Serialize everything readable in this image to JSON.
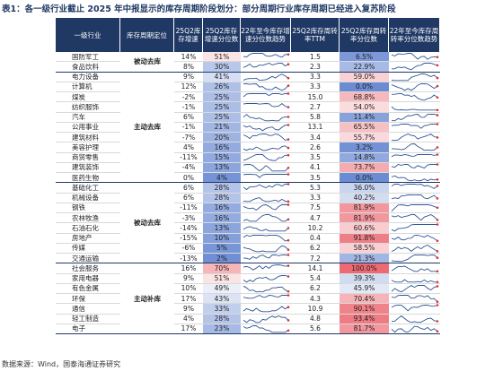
{
  "title": "表1：各一级行业截止 2025 年中报显示的库存周期阶段划分：部分周期行业库存周期已经进入复苏阶段",
  "header": [
    "一级行业",
    "库存周期定位",
    "25Q2库存增速",
    "25Q2库存增速分位数",
    "22年至今库存增速分位数趋势",
    "25Q2库存周转率TTM",
    "25Q2库存周转率分位数",
    "22年至今库存周转率分位数趋势"
  ],
  "groups": [
    {
      "label": "被动去库",
      "rows": [
        [
          "国防军工",
          "14%",
          "51%",
          "1.5",
          "6.5%"
        ],
        [
          "食品饮料",
          "8%",
          "30%",
          "2.3",
          "22.9%"
        ]
      ]
    },
    {
      "label": "主动去库",
      "rows": [
        [
          "电力设备",
          "9%",
          "41%",
          "3.3",
          "59.0%"
        ],
        [
          "计算机",
          "12%",
          "26%",
          "3.3",
          "0.0%"
        ],
        [
          "煤炭",
          "-2%",
          "25%",
          "15.0",
          "68.8%"
        ],
        [
          "纺织服饰",
          "-1%",
          "25%",
          "2.7",
          "54.0%"
        ],
        [
          "汽车",
          "6%",
          "25%",
          "5.8",
          "11.4%"
        ],
        [
          "公用事业",
          "-1%",
          "21%",
          "13.1",
          "65.5%"
        ],
        [
          "建筑材料",
          "-7%",
          "20%",
          "3.4",
          "55.7%"
        ],
        [
          "美容护理",
          "4%",
          "16%",
          "2.6",
          "3.2%"
        ],
        [
          "商贸零售",
          "-11%",
          "15%",
          "3.5",
          "14.8%"
        ],
        [
          "建筑装饰",
          "-4%",
          "13%",
          "4.1",
          "73.7%"
        ],
        [
          "医药生物",
          "0%",
          "4%",
          "3.5",
          "0.0%"
        ]
      ]
    },
    {
      "label": "被动去库",
      "rows": [
        [
          "基础化工",
          "6%",
          "28%",
          "5.3",
          "36.0%"
        ],
        [
          "机械设备",
          "6%",
          "28%",
          "3.3",
          "40.2%"
        ],
        [
          "钢铁",
          "-11%",
          "16%",
          "7.5",
          "81.9%"
        ],
        [
          "农林牧渔",
          "-3%",
          "16%",
          "4.7",
          "81.9%"
        ],
        [
          "石油石化",
          "-14%",
          "13%",
          "10.2",
          "60.6%"
        ],
        [
          "房地产",
          "-15%",
          "10%",
          "0.4",
          "91.8%"
        ],
        [
          "传媒",
          "-6%",
          "5%",
          "6.2",
          "58.5%"
        ],
        [
          "交通运输",
          "-13%",
          "2%",
          "7.2",
          "21.3%"
        ]
      ]
    },
    {
      "label": "主动补库",
      "rows": [
        [
          "社会服务",
          "16%",
          "70%",
          "14.1",
          "100.0%"
        ],
        [
          "家用电器",
          "9%",
          "51%",
          "5.4",
          "39.3%"
        ],
        [
          "有色金属",
          "10%",
          "49%",
          "6.2",
          "45.9%"
        ],
        [
          "环保",
          "17%",
          "43%",
          "4.3",
          "70.4%"
        ],
        [
          "通信",
          "9%",
          "33%",
          "10.9",
          "90.1%"
        ],
        [
          "轻工制造",
          "4%",
          "28%",
          "4.8",
          "93.4%"
        ],
        [
          "电子",
          "17%",
          "23%",
          "5.6",
          "81.7%"
        ]
      ]
    }
  ],
  "source": "数据来源：Wind，国泰海通证券研究"
}
